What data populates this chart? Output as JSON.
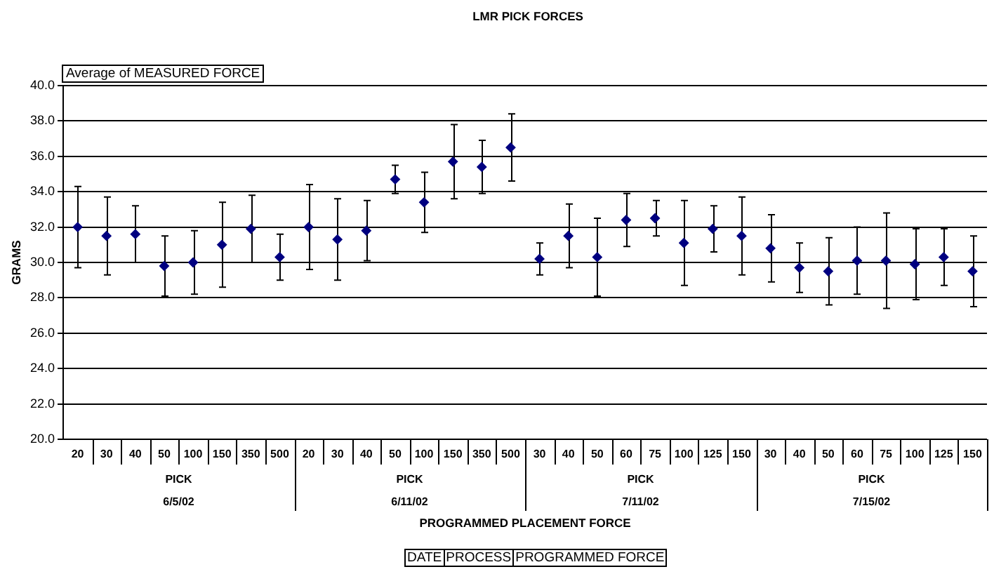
{
  "chart_data": {
    "type": "scatter",
    "title": "LMR PICK FORCES",
    "subtitle": "Average of MEASURED FORCE",
    "xlabel": "PROGRAMMED PLACEMENT FORCE",
    "ylabel": "GRAMS",
    "annotations": [
      "PICK",
      "6/5/02",
      "PICK",
      "6/11/02",
      "PICK",
      "7/11/02",
      "PICK",
      "7/15/02",
      "DATE",
      "PROCESS",
      "PROGRAMMED FORCE"
    ],
    "categories": [
      "20",
      "30",
      "40",
      "50",
      "100",
      "150",
      "350",
      "500",
      "20",
      "30",
      "40",
      "50",
      "100",
      "150",
      "350",
      "500",
      "30",
      "40",
      "50",
      "60",
      "75",
      "100",
      "125",
      "150",
      "30",
      "40",
      "50",
      "60",
      "75",
      "100",
      "125",
      "150"
    ],
    "values": [
      32.0,
      31.5,
      31.6,
      29.8,
      30.0,
      31.0,
      31.9,
      30.3,
      32.0,
      31.3,
      31.8,
      34.7,
      33.4,
      35.7,
      35.4,
      36.5,
      30.2,
      31.5,
      30.3,
      32.4,
      32.5,
      31.1,
      31.9,
      31.5,
      30.8,
      29.7,
      29.5,
      30.1,
      30.1,
      29.9,
      30.3,
      29.5
    ],
    "errors": [
      2.3,
      2.2,
      1.6,
      1.7,
      1.8,
      2.4,
      1.9,
      1.3,
      2.4,
      2.3,
      1.7,
      0.8,
      1.7,
      2.1,
      1.5,
      1.9,
      0.9,
      1.8,
      2.2,
      1.5,
      1.0,
      2.4,
      1.3,
      2.2,
      1.9,
      1.4,
      1.9,
      1.9,
      2.7,
      2.0,
      1.6,
      2.0
    ],
    "color": "#000080",
    "marker": "diamond",
    "grid": "y",
    "ylim": [
      20,
      40
    ],
    "yticks": [
      {
        "value": 20,
        "label": "20.0"
      },
      {
        "value": 22,
        "label": "22.0"
      },
      {
        "value": 24,
        "label": "24.0"
      },
      {
        "value": 26,
        "label": "26.0"
      },
      {
        "value": 28,
        "label": "28.0"
      },
      {
        "value": 30,
        "label": "30.0"
      },
      {
        "value": 32,
        "label": "32.0"
      },
      {
        "value": 34,
        "label": "34.0"
      },
      {
        "value": 36,
        "label": "36.0"
      },
      {
        "value": 38,
        "label": "38.0"
      },
      {
        "value": 40,
        "label": "40.0"
      }
    ]
  }
}
